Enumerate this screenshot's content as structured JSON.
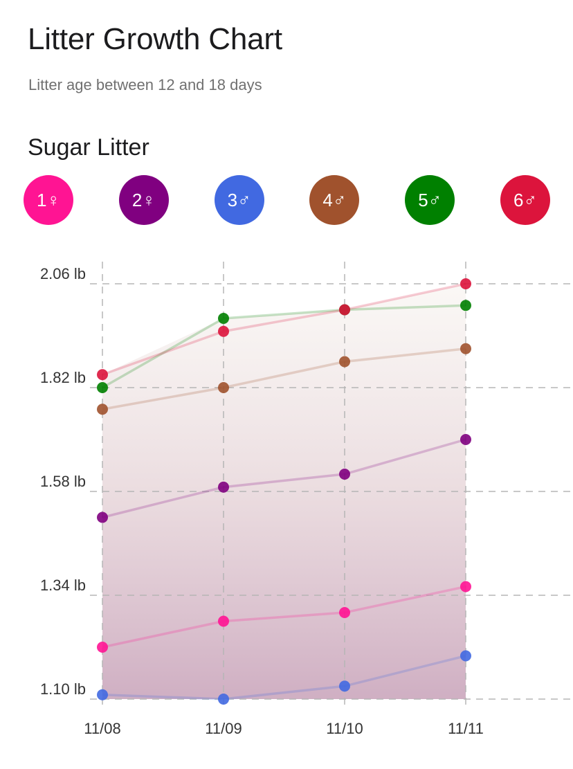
{
  "page": {
    "title": "Litter Growth Chart",
    "subtitle": "Litter age between 12 and 18 days"
  },
  "litter": {
    "name": "Sugar Litter",
    "pups": [
      {
        "label": "1♀",
        "color": "#FF1493"
      },
      {
        "label": "2♀",
        "color": "#800080"
      },
      {
        "label": "3♂",
        "color": "#4169E1"
      },
      {
        "label": "4♂",
        "color": "#A0522D"
      },
      {
        "label": "5♂",
        "color": "#008000"
      },
      {
        "label": "6♂",
        "color": "#DC143C"
      }
    ]
  },
  "chart_data": {
    "type": "line",
    "x": [
      "11/08",
      "11/09",
      "11/10",
      "11/11"
    ],
    "y_ticks": [
      2.06,
      1.82,
      1.58,
      1.34,
      1.1
    ],
    "y_tick_labels": [
      "2.06 lb",
      "1.82 lb",
      "1.58 lb",
      "1.34 lb",
      "1.10 lb"
    ],
    "ylim": [
      1.1,
      2.06
    ],
    "grid": true,
    "series": [
      {
        "name": "1♀",
        "color": "#FF1493",
        "values": [
          1.22,
          1.28,
          1.3,
          1.36
        ]
      },
      {
        "name": "2♀",
        "color": "#800080",
        "values": [
          1.52,
          1.59,
          1.62,
          1.7
        ]
      },
      {
        "name": "3♂",
        "color": "#4169E1",
        "values": [
          1.11,
          1.1,
          1.13,
          1.2
        ]
      },
      {
        "name": "4♂",
        "color": "#A0522D",
        "values": [
          1.77,
          1.82,
          1.88,
          1.91
        ]
      },
      {
        "name": "5♂",
        "color": "#008000",
        "values": [
          1.82,
          1.98,
          2.0,
          2.01
        ]
      },
      {
        "name": "6♂",
        "color": "#DC143C",
        "values": [
          1.85,
          1.95,
          2.0,
          2.06
        ]
      }
    ]
  }
}
